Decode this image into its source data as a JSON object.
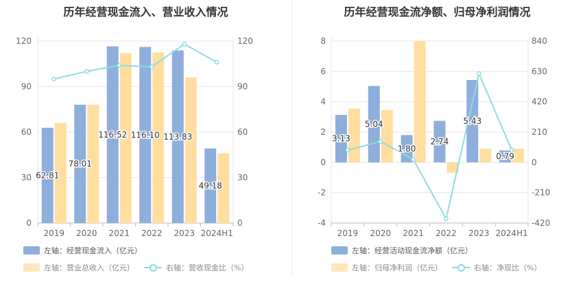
{
  "chart_data": [
    {
      "type": "bar",
      "title": "历年经营现金流入、营业收入情况",
      "categories": [
        "2019",
        "2020",
        "2021",
        "2022",
        "2023",
        "2024H1"
      ],
      "series": [
        {
          "name": "左轴：经营现金流入（亿元）",
          "axis": "left",
          "kind": "bar",
          "color": "#8eaedb",
          "values": [
            62.81,
            78.01,
            116.52,
            116.1,
            113.83,
            49.18
          ]
        },
        {
          "name": "左轴：营业总收入（亿元）",
          "axis": "left",
          "kind": "bar",
          "color": "#ffdea0",
          "values": [
            66,
            78,
            112,
            112.5,
            96,
            46
          ]
        },
        {
          "name": "右轴：营收现金比（%）",
          "axis": "right",
          "kind": "line",
          "color": "#8fdbe0",
          "values": [
            95,
            100,
            104,
            103,
            118,
            106
          ]
        }
      ],
      "data_labels": [
        "62.81",
        "78.01",
        "116.52",
        "116.10",
        "113.83",
        "49.18"
      ],
      "left_axis": {
        "min": 0,
        "max": 120,
        "ticks": [
          "0",
          "30",
          "60",
          "90",
          "120"
        ]
      },
      "right_axis": {
        "min": 0,
        "max": 120,
        "ticks": [
          "0",
          "30",
          "60",
          "90",
          "120"
        ]
      },
      "legend": {
        "row1": [
          {
            "label": "左轴：经营现金流入（亿元）",
            "style": "swatch",
            "color": "#8eaedb"
          }
        ],
        "row2": [
          {
            "label": "左轴：营业总收入（亿元）",
            "style": "swatch",
            "color": "#ffe7bd"
          },
          {
            "label": "右轴：营收现金比（%）",
            "style": "line",
            "color": "#8fdbe0"
          }
        ]
      },
      "grid": true
    },
    {
      "type": "bar",
      "title": "历年经营现金流净额、归母净利润情况",
      "categories": [
        "2019",
        "2020",
        "2021",
        "2022",
        "2023",
        "2024H1"
      ],
      "series": [
        {
          "name": "左轴：经营活动现金流净额（亿元）",
          "axis": "left",
          "kind": "bar",
          "color": "#8eaedb",
          "values": [
            3.13,
            5.04,
            1.8,
            2.74,
            5.43,
            0.79
          ]
        },
        {
          "name": "左轴：归母净利润（亿元）",
          "axis": "left",
          "kind": "bar",
          "color": "#ffdea0",
          "values": [
            3.55,
            3.45,
            8.0,
            -0.7,
            0.9,
            0.9
          ]
        },
        {
          "name": "右轴：净现比（%）",
          "axis": "right",
          "kind": "line",
          "color": "#8fdbe0",
          "values": [
            85,
            145,
            20,
            -390,
            615,
            85
          ]
        }
      ],
      "data_labels": [
        "3.13",
        "5.04",
        "1.80",
        "2.74",
        "5.43",
        "0.79"
      ],
      "left_axis": {
        "min": -4,
        "max": 8,
        "ticks": [
          "-4",
          "-2",
          "0",
          "2",
          "4",
          "6",
          "8"
        ]
      },
      "right_axis": {
        "min": -420,
        "max": 840,
        "ticks": [
          "-420",
          "-210",
          "0",
          "210",
          "420",
          "630",
          "840"
        ]
      },
      "legend": {
        "row1": [
          {
            "label": "左轴：经营活动现金流净额（亿元）",
            "style": "swatch",
            "color": "#8eaedb"
          }
        ],
        "row2": [
          {
            "label": "左轴：归母净利润（亿元）",
            "style": "swatch",
            "color": "#ffe7bd"
          },
          {
            "label": "右轴：净现比（%）",
            "style": "line",
            "color": "#8fdbe0"
          }
        ]
      },
      "grid": true
    }
  ]
}
